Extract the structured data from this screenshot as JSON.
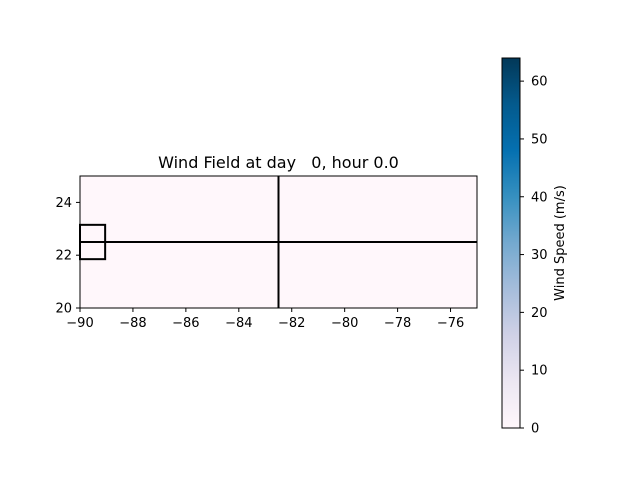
{
  "chart_data": {
    "type": "heatmap",
    "title": "Wind Field at day   0, hour 0.0",
    "xlabel": "",
    "ylabel": "",
    "xlim": [
      -90,
      -75
    ],
    "ylim": [
      20,
      25
    ],
    "x_ticks": [
      -90,
      -88,
      -86,
      -84,
      -82,
      -80,
      -78,
      -76
    ],
    "x_tick_labels": [
      "−90",
      "−88",
      "−86",
      "−84",
      "−82",
      "−80",
      "−78",
      "−76"
    ],
    "y_ticks": [
      20,
      22,
      24
    ],
    "y_tick_labels": [
      "20",
      "22",
      "24"
    ],
    "grid": false,
    "field_value": 0,
    "field_color": "#fff7fb",
    "overlay_lines": [
      {
        "x": [
          -90,
          -75
        ],
        "y": [
          22.5,
          22.5
        ]
      },
      {
        "x": [
          -82.5,
          -82.5
        ],
        "y": [
          20,
          25
        ]
      }
    ],
    "overlay_box": {
      "x": [
        -90,
        -89.05
      ],
      "y": [
        21.85,
        23.15
      ]
    },
    "line_color": "#000000",
    "colorbar": {
      "label": "Wind Speed (m/s)",
      "vmin": 0,
      "vmax": 64,
      "ticks": [
        0,
        10,
        20,
        30,
        40,
        50,
        60
      ],
      "tick_labels": [
        "0",
        "10",
        "20",
        "30",
        "40",
        "50",
        "60"
      ],
      "colormap": "PuBu",
      "colors": [
        "#fff7fb",
        "#ece7f2",
        "#d0d1e6",
        "#a6bddb",
        "#74a9cf",
        "#3690c0",
        "#0570b0",
        "#045a8d",
        "#023858"
      ]
    }
  }
}
